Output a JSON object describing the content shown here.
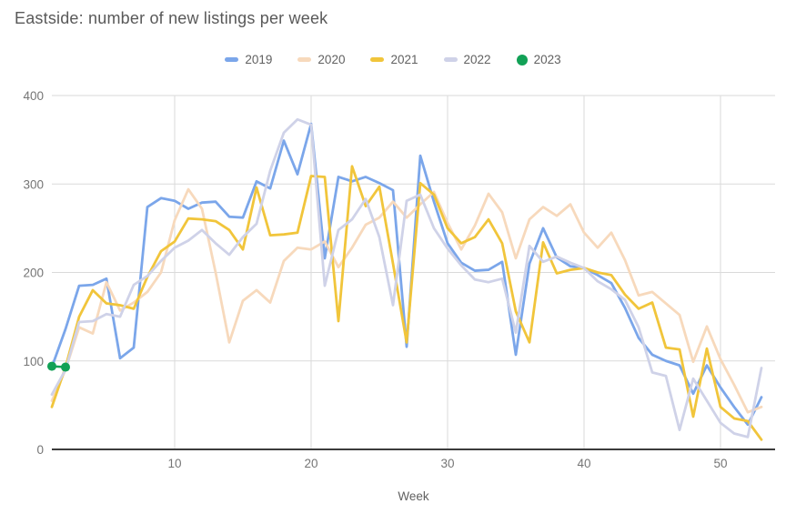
{
  "header": {
    "title": "Eastside: number of new listings per week"
  },
  "colors": {
    "s2019": "#7BA6EA",
    "s2020": "#F7D9BC",
    "s2021": "#F1C53B",
    "s2022": "#CFD2E8",
    "s2023": "#12A156",
    "title_text": "#595959",
    "legend_text": "#616161",
    "tick_text": "#757575",
    "gridline": "#dadada",
    "axis_line": "#3c3c3c"
  },
  "chart_data": {
    "type": "line",
    "title": "Eastside: number of new listings per week",
    "xlabel": "Week",
    "ylabel": "",
    "xlim": [
      1,
      53
    ],
    "ylim": [
      0,
      400
    ],
    "xticks": [
      10,
      20,
      30,
      40,
      50
    ],
    "yticks": [
      0,
      100,
      200,
      300,
      400
    ],
    "grid": true,
    "legend_position": "top",
    "x_weeks": "1..53 implicit by array index",
    "series": [
      {
        "name": "2019",
        "type": "line",
        "color": "#7BA6EA",
        "values": [
          93,
          136,
          185,
          186,
          193,
          103,
          115,
          274,
          284,
          281,
          272,
          279,
          280,
          263,
          262,
          303,
          295,
          349,
          311,
          368,
          216,
          308,
          303,
          308,
          301,
          293,
          116,
          332,
          280,
          233,
          211,
          202,
          203,
          212,
          107,
          210,
          250,
          217,
          207,
          205,
          197,
          188,
          160,
          126,
          107,
          100,
          95,
          63,
          95,
          70,
          48,
          28,
          59
        ]
      },
      {
        "name": "2020",
        "type": "line",
        "color": "#F7D9BC",
        "values": [
          55,
          90,
          138,
          131,
          189,
          157,
          166,
          178,
          200,
          259,
          294,
          272,
          200,
          121,
          168,
          180,
          166,
          213,
          228,
          226,
          235,
          206,
          228,
          254,
          262,
          280,
          262,
          277,
          291,
          256,
          226,
          253,
          289,
          268,
          216,
          260,
          274,
          264,
          277,
          245,
          228,
          245,
          214,
          174,
          178,
          165,
          152,
          99,
          139,
          102,
          73,
          42,
          48
        ]
      },
      {
        "name": "2021",
        "type": "line",
        "color": "#F1C53B",
        "values": [
          48,
          93,
          150,
          180,
          165,
          163,
          159,
          195,
          224,
          235,
          261,
          260,
          258,
          248,
          226,
          296,
          242,
          243,
          245,
          309,
          308,
          145,
          320,
          275,
          297,
          210,
          121,
          301,
          288,
          250,
          233,
          240,
          260,
          233,
          156,
          121,
          234,
          199,
          203,
          205,
          200,
          197,
          175,
          159,
          166,
          115,
          113,
          37,
          114,
          48,
          35,
          32,
          11
        ]
      },
      {
        "name": "2022",
        "type": "line",
        "color": "#CFD2E8",
        "values": [
          62,
          90,
          144,
          145,
          153,
          150,
          186,
          196,
          213,
          228,
          236,
          248,
          233,
          220,
          240,
          255,
          315,
          358,
          373,
          367,
          185,
          248,
          260,
          283,
          240,
          163,
          281,
          288,
          250,
          227,
          208,
          192,
          189,
          193,
          132,
          230,
          212,
          218,
          211,
          205,
          190,
          181,
          169,
          138,
          87,
          83,
          22,
          80,
          55,
          30,
          18,
          14,
          92
        ]
      },
      {
        "name": "2023",
        "type": "scatter",
        "color": "#12A156",
        "x": [
          1,
          2
        ],
        "values": [
          94,
          93
        ]
      }
    ]
  }
}
